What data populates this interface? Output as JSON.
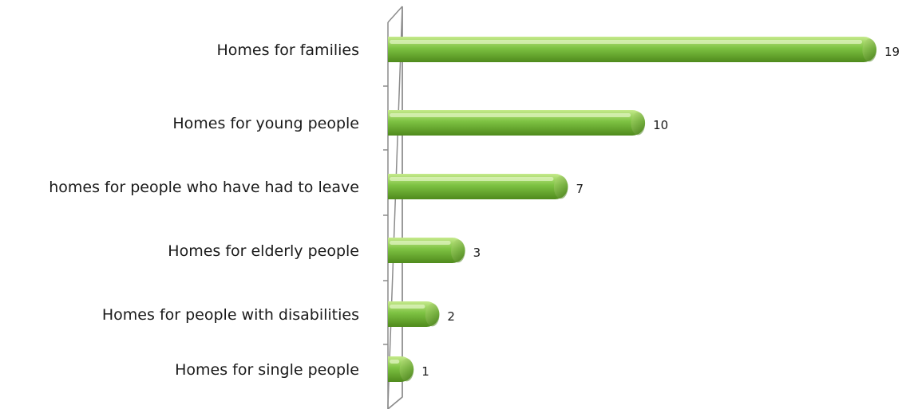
{
  "chart_data": {
    "type": "bar",
    "orientation": "horizontal",
    "categories": [
      "Homes for families",
      "Homes for young people",
      "homes for people who have had to leave",
      "Homes for elderly people",
      "Homes for people with disabilities",
      "Homes for single people"
    ],
    "values": [
      19,
      10,
      7,
      3,
      2,
      1
    ],
    "value_labels": [
      "19",
      "10",
      "7",
      "3",
      "2",
      "1"
    ],
    "xlim": [
      0,
      19
    ],
    "grid": false,
    "legend": "none",
    "bar_color": "#7dc242",
    "bar_dark_color": "#4f8a1c",
    "bar_light_color": "#c6ea8c"
  }
}
